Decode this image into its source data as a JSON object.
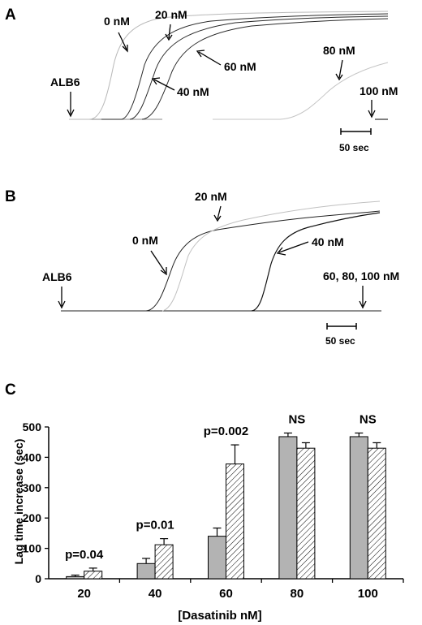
{
  "panels": {
    "a": "A",
    "b": "B",
    "c": "C"
  },
  "panel_a": {
    "agonist": "ALB6",
    "scale_bar": "50 sec",
    "labels": {
      "c0": "0 nM",
      "c20": "20 nM",
      "c40": "40 nM",
      "c60": "60 nM",
      "c80": "80 nM",
      "c100": "100 nM"
    }
  },
  "panel_b": {
    "agonist": "ALB6",
    "scale_bar": "50 sec",
    "labels": {
      "c0": "0 nM",
      "c20": "20 nM",
      "c40": "40 nM",
      "c60_100": "60, 80, 100 nM"
    }
  },
  "colors": {
    "light_trace": "#b8b8b8",
    "dark_trace": "#1a1a1a",
    "bar_gray": "#b3b3b3",
    "bar_hatch": "#ffffff"
  },
  "chart_data": {
    "type": "bar",
    "ylabel": "Lag time increase (sec)",
    "xlabel": "[Dasatinib nM]",
    "categories": [
      "20",
      "40",
      "60",
      "80",
      "100"
    ],
    "ylim": [
      0,
      500
    ],
    "yticks": [
      "0",
      "100",
      "200",
      "300",
      "400",
      "500"
    ],
    "series": [
      {
        "values": [
          7,
          50,
          140,
          468,
          468
        ],
        "errors": [
          5,
          17,
          27,
          12,
          12
        ],
        "fill": "gray"
      },
      {
        "values": [
          25,
          112,
          378,
          430,
          430
        ],
        "errors": [
          10,
          20,
          63,
          18,
          18
        ],
        "fill": "hatched"
      }
    ],
    "annotations": [
      "p=0.04",
      "p=0.01",
      "p=0.002",
      "NS",
      "NS"
    ]
  }
}
